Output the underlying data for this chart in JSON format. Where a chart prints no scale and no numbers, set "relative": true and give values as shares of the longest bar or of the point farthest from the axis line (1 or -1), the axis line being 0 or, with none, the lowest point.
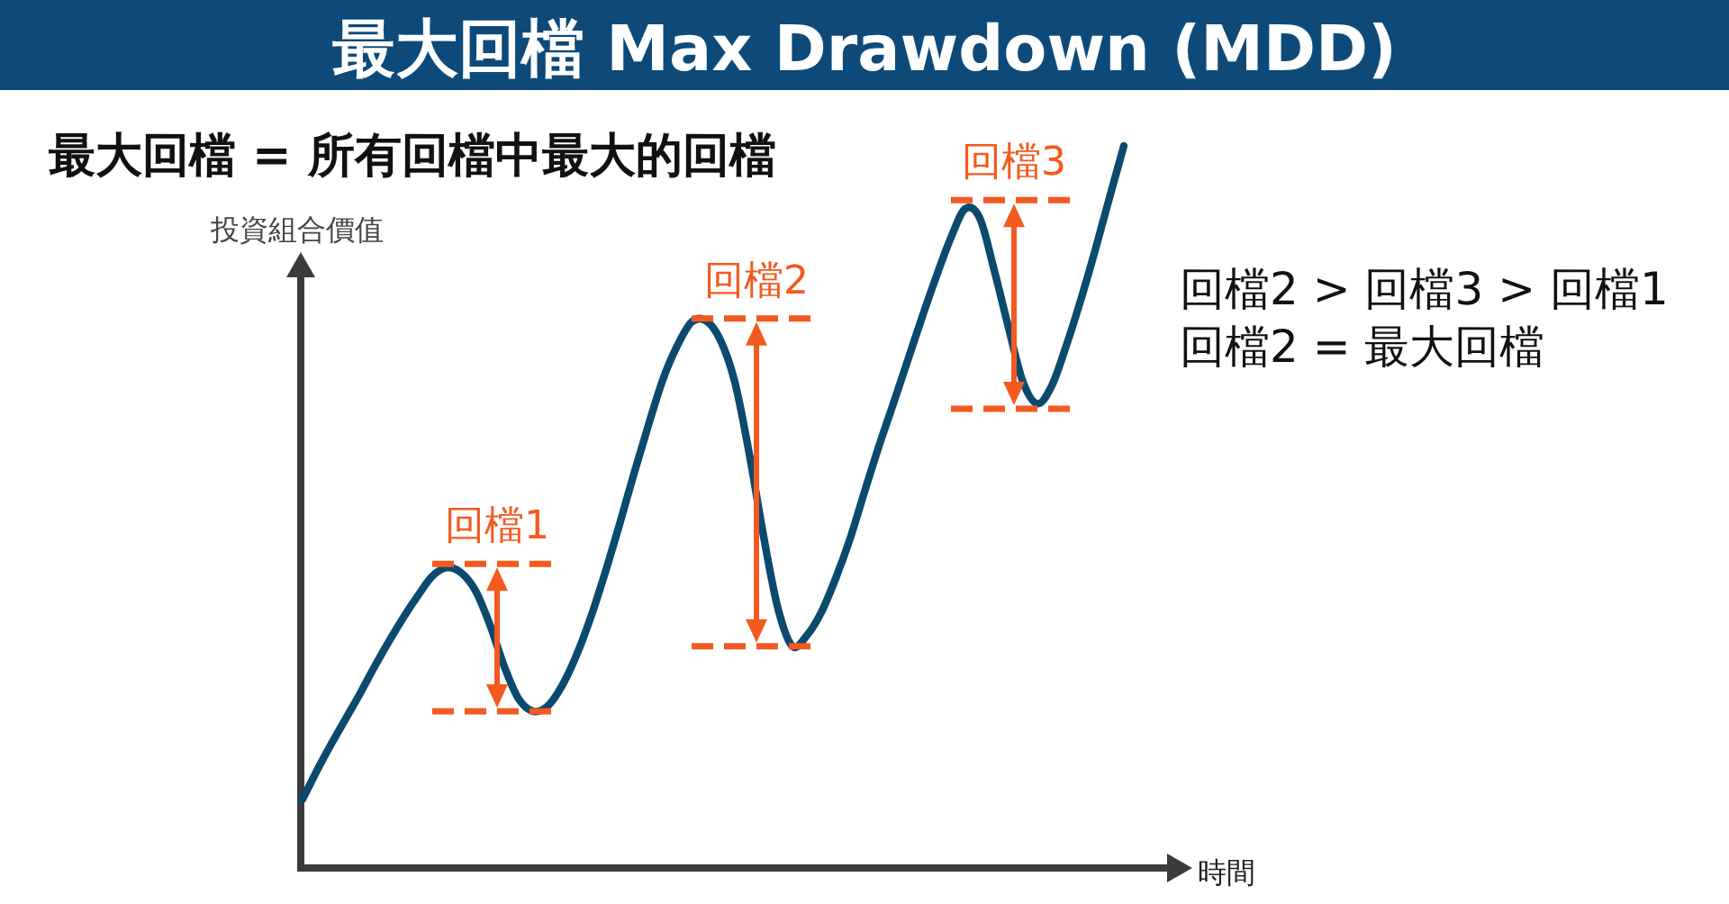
{
  "chart_data": {
    "type": "line",
    "title": "最大回檔 Max Drawdown (MDD)",
    "subtitle": "最大回檔 = 所有回檔中最大的回檔",
    "xlabel": "時間",
    "ylabel": "投資組合價值",
    "relative": true,
    "categories": [
      null,
      null,
      null,
      null,
      null,
      null,
      null,
      null,
      null,
      null,
      null,
      null,
      null,
      null,
      null,
      null,
      null,
      null,
      null,
      null,
      null,
      null,
      null,
      null,
      null,
      null,
      null,
      null,
      null,
      null,
      null,
      null,
      null,
      null,
      null,
      null,
      null,
      null,
      null,
      null,
      null,
      null,
      null,
      null,
      null,
      null,
      null,
      null,
      null,
      null,
      null,
      null,
      null,
      null,
      null,
      null,
      null,
      null
    ],
    "values": [
      0.095,
      0.135,
      0.172,
      0.207,
      0.242,
      0.279,
      0.314,
      0.347,
      0.377,
      0.404,
      0.416,
      0.409,
      0.384,
      0.337,
      0.279,
      0.234,
      0.217,
      0.224,
      0.252,
      0.294,
      0.347,
      0.409,
      0.476,
      0.546,
      0.613,
      0.676,
      0.723,
      0.756,
      0.758,
      0.731,
      0.673,
      0.574,
      0.459,
      0.359,
      0.307,
      0.322,
      0.354,
      0.401,
      0.456,
      0.521,
      0.584,
      0.643,
      0.703,
      0.763,
      0.82,
      0.873,
      0.913,
      0.9,
      0.828,
      0.748,
      0.673,
      0.643,
      0.668,
      0.723,
      0.786,
      0.855,
      0.928,
      1.0
    ],
    "color": "#0b4a6f",
    "ref_lines": [
      {
        "axis": "y",
        "value": 0.421,
        "label": "回檔1",
        "color": "#f25a1f",
        "line_style": "dashed"
      },
      {
        "axis": "y",
        "value": 0.217,
        "color": "#f25a1f",
        "line_style": "dashed"
      },
      {
        "axis": "y",
        "value": 0.761,
        "label": "回檔2",
        "color": "#f25a1f",
        "line_style": "dashed"
      },
      {
        "axis": "y",
        "value": 0.307,
        "color": "#f25a1f",
        "line_style": "dashed"
      },
      {
        "axis": "y",
        "value": 0.925,
        "label": "回檔3",
        "color": "#f25a1f",
        "line_style": "dashed"
      },
      {
        "axis": "y",
        "value": 0.636,
        "color": "#f25a1f",
        "line_style": "dashed"
      }
    ],
    "annotations": [
      "回檔2 > 回檔3 > 回檔1",
      "回檔2 = 最大回檔"
    ]
  }
}
